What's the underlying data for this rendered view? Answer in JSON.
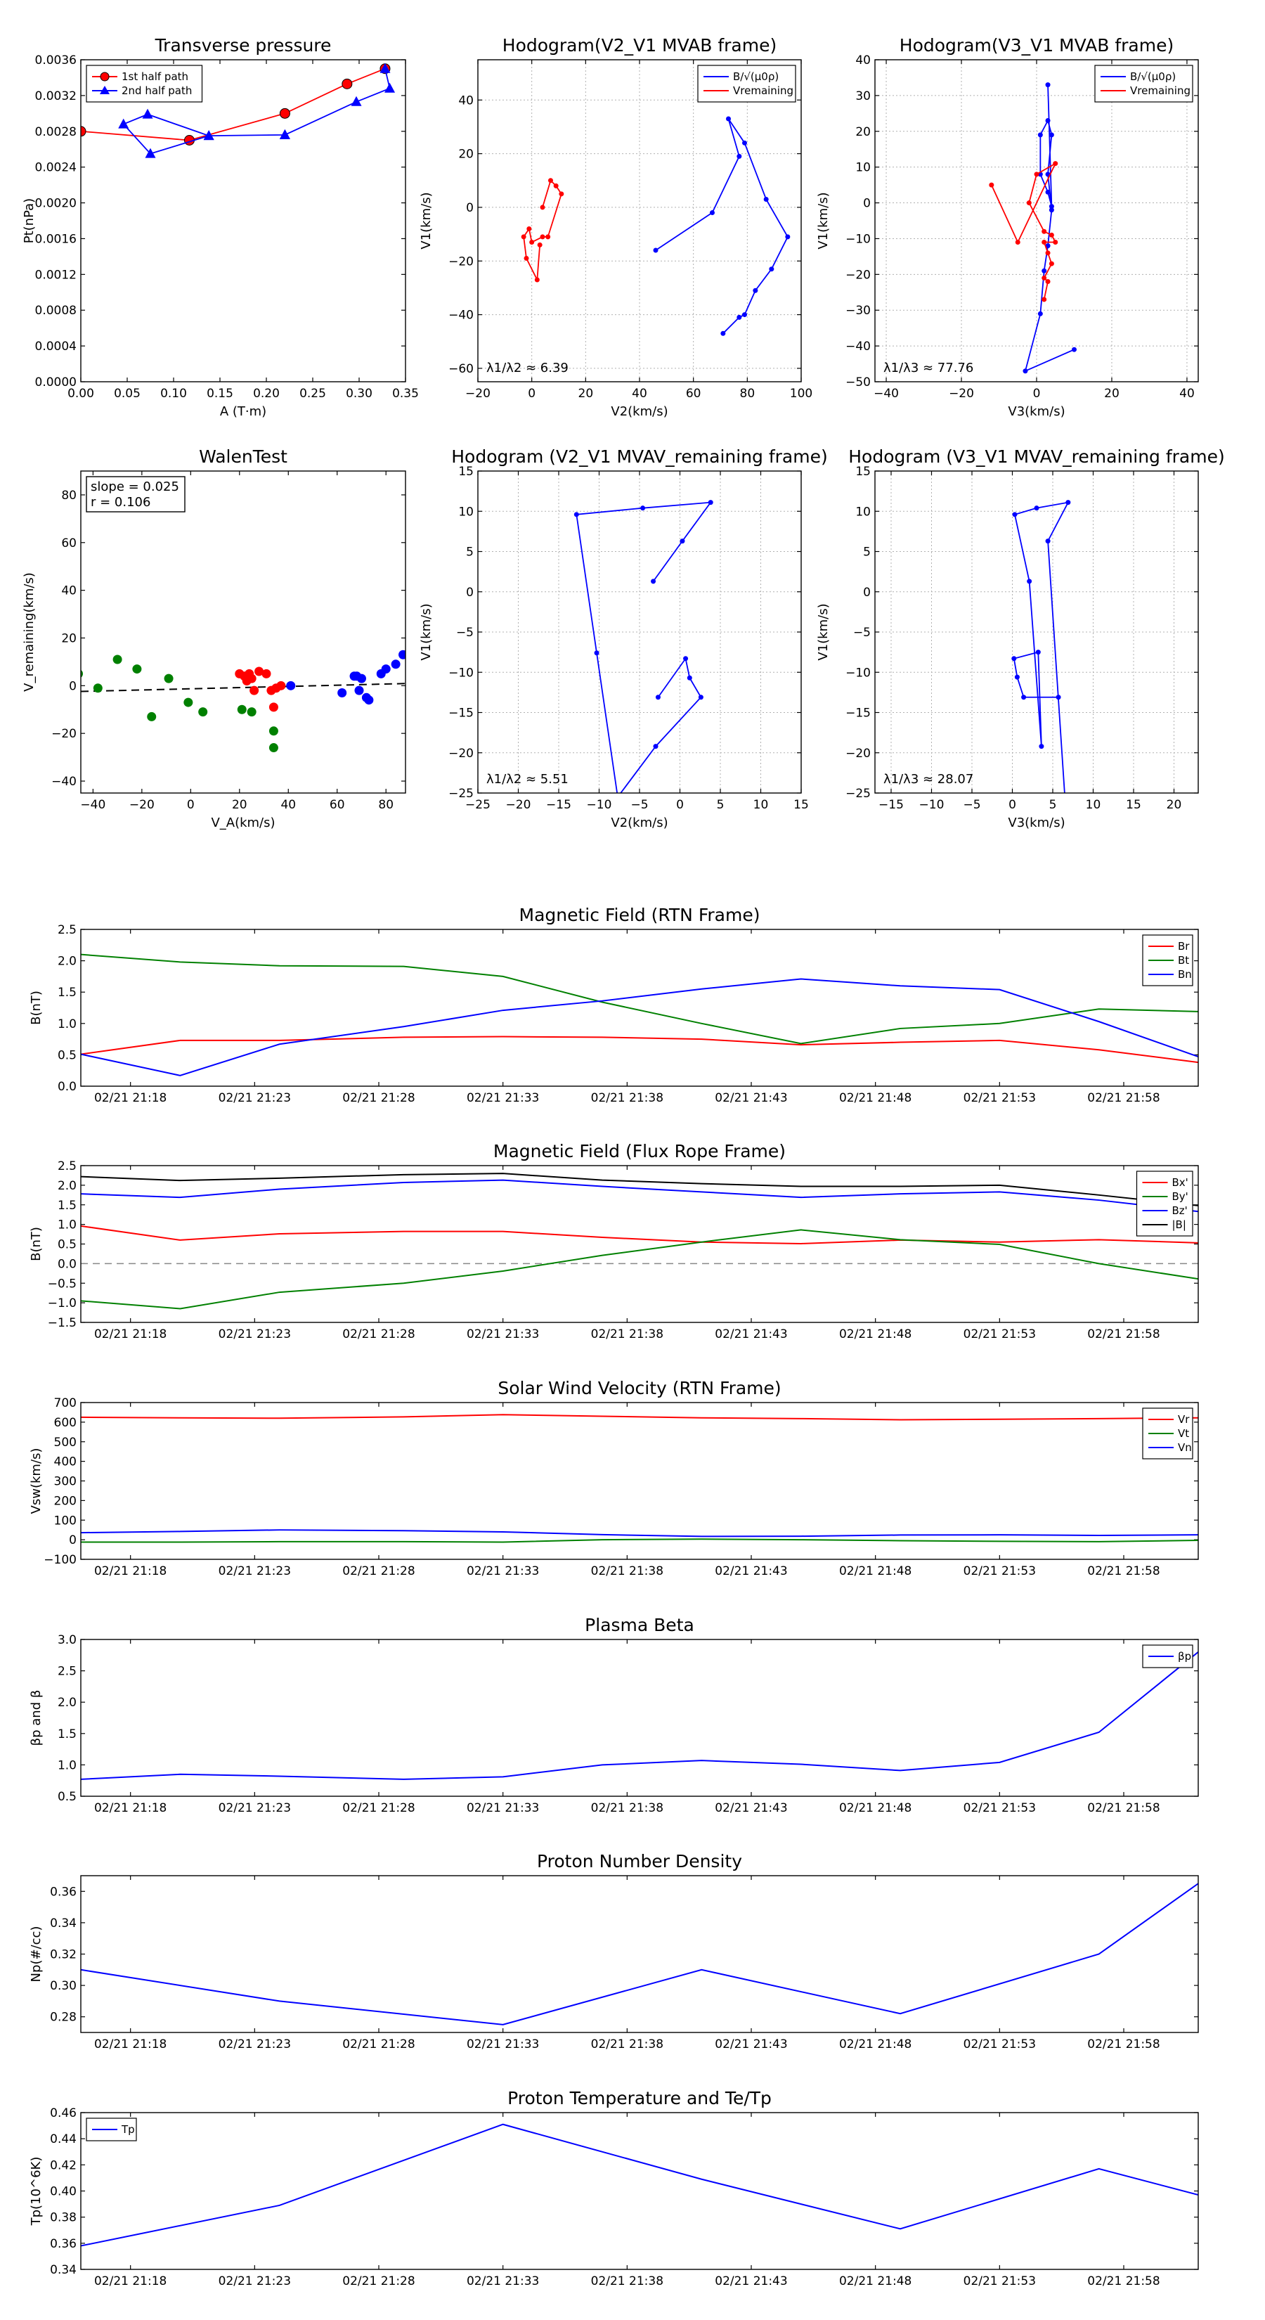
{
  "chart_data": [
    {
      "id": "transverse-pressure",
      "type": "line",
      "title": "Transverse pressure",
      "xlabel": "A (T·m)",
      "ylabel": "Pt(nPa)",
      "xlim": [
        0,
        0.35
      ],
      "ylim": [
        0,
        0.0036
      ],
      "xticks": [
        "0.00",
        "0.05",
        "0.10",
        "0.15",
        "0.20",
        "0.25",
        "0.30",
        "0.35"
      ],
      "yticks": [
        "0.0000",
        "0.0004",
        "0.0008",
        "0.0012",
        "0.0016",
        "0.0020",
        "0.0024",
        "0.0028",
        "0.0032",
        "0.0036"
      ],
      "grid": false,
      "legend": "top-left",
      "series": [
        {
          "name": "1st half path",
          "color": "#ff0000",
          "marker": "circle",
          "x": [
            0.0,
            0.117,
            0.22,
            0.287,
            0.328
          ],
          "y": [
            0.0028,
            0.0027,
            0.003,
            0.00333,
            0.0035
          ]
        },
        {
          "name": "2nd half path",
          "color": "#0000ff",
          "marker": "triangle",
          "x": [
            0.328,
            0.333,
            0.297,
            0.22,
            0.138,
            0.072,
            0.046,
            0.075,
            0.138,
            0.22
          ],
          "y": [
            0.0035,
            0.00328,
            0.00313,
            0.00276,
            0.00275,
            0.00299,
            0.00288,
            0.00255,
            0.00275,
            0.00276
          ]
        }
      ]
    },
    {
      "id": "hodogram-v2-v1-mvab",
      "type": "line",
      "title": "Hodogram(V2_V1 MVAB frame)",
      "xlabel": "V2(km/s)",
      "ylabel": "V1(km/s)",
      "xlim": [
        -20,
        100
      ],
      "ylim": [
        -65,
        55
      ],
      "xticks": [
        "−20",
        "0",
        "20",
        "40",
        "60",
        "80",
        "100"
      ],
      "yticks": [
        "−60",
        "−40",
        "−20",
        "0",
        "20",
        "40"
      ],
      "grid": true,
      "legend": "top-right",
      "annotation": "λ1/λ2 ≈ 6.39",
      "series": [
        {
          "name": "B/√(μ0ρ)",
          "color": "#0000ff",
          "x": [
            46,
            67,
            77,
            73,
            79,
            87,
            95,
            89,
            83,
            79,
            77,
            71
          ],
          "y": [
            -16,
            -2,
            19,
            33,
            24,
            3,
            -11,
            -23,
            -31,
            -40,
            -41,
            -47
          ]
        },
        {
          "name": "Vremaining",
          "color": "#ff0000",
          "x": [
            4,
            7,
            9,
            11,
            6,
            4,
            0,
            -1,
            -3,
            -2,
            2,
            3
          ],
          "y": [
            0,
            10,
            8,
            5,
            -11,
            -11,
            -13,
            -8,
            -11,
            -19,
            -27,
            -14
          ]
        }
      ]
    },
    {
      "id": "hodogram-v3-v1-mvab",
      "type": "line",
      "title": "Hodogram(V3_V1 MVAB frame)",
      "xlabel": "V3(km/s)",
      "ylabel": "V1(km/s)",
      "xlim": [
        -43,
        43
      ],
      "ylim": [
        -50,
        40
      ],
      "xticks": [
        "−40",
        "−20",
        "0",
        "20",
        "40"
      ],
      "yticks": [
        "−50",
        "−40",
        "−30",
        "−20",
        "−10",
        "0",
        "10",
        "20",
        "30",
        "40"
      ],
      "grid": true,
      "legend": "top-right",
      "annotation": "λ1/λ3 ≈ 77.76",
      "series": [
        {
          "name": "B/√(μ0ρ)",
          "color": "#0000ff",
          "x": [
            10,
            -3,
            1,
            2,
            3,
            4,
            3,
            4,
            3,
            1,
            1,
            3,
            4,
            3
          ],
          "y": [
            -41,
            -47,
            -31,
            -19,
            -12,
            -2,
            8,
            19,
            23,
            19,
            8,
            3,
            -1,
            33
          ]
        },
        {
          "name": "Vremaining",
          "color": "#ff0000",
          "x": [
            -12,
            -5,
            5,
            0,
            -2,
            2,
            4,
            5,
            2,
            3,
            4,
            2,
            3,
            2
          ],
          "y": [
            5,
            -11,
            11,
            8,
            0,
            -8,
            -9,
            -11,
            -11,
            -14,
            -17,
            -21,
            -22,
            -27
          ]
        }
      ]
    },
    {
      "id": "walen-test",
      "type": "scatter",
      "title": "WalenTest",
      "xlabel": "V_A(km/s)",
      "ylabel": "V_remaining(km/s)",
      "xlim": [
        -45,
        88
      ],
      "ylim": [
        -45,
        90
      ],
      "xticks": [
        "−40",
        "−20",
        "0",
        "20",
        "40",
        "60",
        "80"
      ],
      "yticks": [
        "−40",
        "−20",
        "0",
        "20",
        "40",
        "60",
        "80"
      ],
      "grid": false,
      "annotation_lines": [
        "slope = 0.025",
        "r = 0.106"
      ],
      "fit_line": {
        "slope": 0.025,
        "intercept": -1.3
      },
      "series": [
        {
          "name": "",
          "color": "#008000",
          "x": [
            -46,
            -38,
            -30,
            -22,
            -16,
            -9,
            -1,
            5,
            21,
            25,
            34,
            34
          ],
          "y": [
            5,
            -1,
            11,
            7,
            -13,
            3,
            -7,
            -11,
            -10,
            -11,
            -19,
            -26
          ]
        },
        {
          "name": "",
          "color": "#ff0000",
          "x": [
            20,
            22,
            24,
            25,
            23,
            26,
            28,
            31,
            33,
            34,
            35,
            37
          ],
          "y": [
            5,
            4,
            5,
            3,
            2,
            -2,
            6,
            5,
            -2,
            -9,
            -1,
            0
          ]
        },
        {
          "name": "",
          "color": "#0000ff",
          "x": [
            41,
            62,
            67,
            68,
            69,
            70,
            72,
            73,
            78,
            80,
            84,
            87
          ],
          "y": [
            0,
            -3,
            4,
            4,
            -2,
            3,
            -5,
            -6,
            5,
            7,
            9,
            13
          ]
        }
      ]
    },
    {
      "id": "hodogram-v2-v1-mvav",
      "type": "line",
      "title": "Hodogram (V2_V1 MVAV_remaining frame)",
      "xlabel": "V2(km/s)",
      "ylabel": "V1(km/s)",
      "xlim": [
        -25,
        15
      ],
      "ylim": [
        -25,
        15
      ],
      "xticks": [
        "−25",
        "−20",
        "−15",
        "−10",
        "−5",
        "0",
        "5",
        "10",
        "15"
      ],
      "yticks": [
        "−25",
        "−20",
        "−15",
        "−10",
        "−5",
        "0",
        "5",
        "10",
        "15"
      ],
      "grid": true,
      "annotation": "λ1/λ2 ≈ 5.51",
      "series": [
        {
          "name": "",
          "color": "#0000ff",
          "x": [
            -3.3,
            0.3,
            3.8,
            -4.6,
            -12.8,
            -10.3,
            -7.7,
            -3,
            2.6,
            1.2,
            0.7,
            -2.7
          ],
          "y": [
            1.3,
            6.3,
            11.1,
            10.4,
            9.6,
            -7.6,
            -25.5,
            -19.2,
            -13.1,
            -10.7,
            -8.3,
            -13.1
          ]
        }
      ]
    },
    {
      "id": "hodogram-v3-v1-mvav",
      "type": "line",
      "title": "Hodogram (V3_V1 MVAV_remaining frame)",
      "xlabel": "V3(km/s)",
      "ylabel": "V1(km/s)",
      "xlim": [
        -17,
        23
      ],
      "ylim": [
        -25,
        15
      ],
      "xticks": [
        "−15",
        "−10",
        "−5",
        "0",
        "5",
        "10",
        "15",
        "20"
      ],
      "yticks": [
        "−25",
        "−20",
        "−15",
        "−10",
        "−5",
        "0",
        "5",
        "10",
        "15"
      ],
      "grid": true,
      "annotation": "λ1/λ3 ≈ 28.07",
      "series": [
        {
          "name": "",
          "color": "#0000ff",
          "x": [
            5.7,
            1.4,
            0.6,
            0.2,
            3.2,
            3.6,
            2.1,
            0.3,
            3.0,
            6.9,
            4.4,
            6.5
          ],
          "y": [
            -13.1,
            -13.1,
            -10.6,
            -8.3,
            -7.5,
            -19.2,
            1.3,
            9.6,
            10.4,
            11.1,
            6.3,
            -25.5
          ]
        }
      ]
    },
    {
      "id": "magnetic-field-rtn",
      "type": "line",
      "title": "Magnetic Field (RTN Frame)",
      "ylabel": "B(nT)",
      "x": [
        "21:16",
        "21:20",
        "21:24",
        "21:29",
        "21:33",
        "21:37",
        "21:41",
        "21:45",
        "21:49",
        "21:53",
        "21:57",
        "22:01"
      ],
      "xticks": [
        "02/21 21:18",
        "02/21 21:23",
        "02/21 21:28",
        "02/21 21:33",
        "02/21 21:38",
        "02/21 21:43",
        "02/21 21:48",
        "02/21 21:53",
        "02/21 21:58"
      ],
      "ylim": [
        0,
        2.5
      ],
      "yticks": [
        "0.0",
        "0.5",
        "1.0",
        "1.5",
        "2.0",
        "2.5"
      ],
      "grid": false,
      "legend": "top-right",
      "series": [
        {
          "name": "Br",
          "color": "#ff0000",
          "values": [
            0.51,
            0.73,
            0.73,
            0.78,
            0.79,
            0.78,
            0.75,
            0.66,
            0.7,
            0.73,
            0.58,
            0.38
          ]
        },
        {
          "name": "Bt",
          "color": "#008000",
          "values": [
            2.1,
            1.98,
            1.92,
            1.91,
            1.75,
            1.34,
            1.0,
            0.68,
            0.92,
            1.0,
            1.23,
            1.19
          ]
        },
        {
          "name": "Bn",
          "color": "#0000ff",
          "values": [
            0.51,
            0.17,
            0.67,
            0.95,
            1.21,
            1.36,
            1.55,
            1.71,
            1.6,
            1.54,
            1.03,
            0.47
          ]
        }
      ]
    },
    {
      "id": "magnetic-field-flux-rope",
      "type": "line",
      "title": "Magnetic Field (Flux Rope Frame)",
      "ylabel": "B(nT)",
      "x": [
        "21:16",
        "21:20",
        "21:24",
        "21:29",
        "21:33",
        "21:37",
        "21:41",
        "21:45",
        "21:49",
        "21:53",
        "21:57",
        "22:01"
      ],
      "xticks": [
        "02/21 21:18",
        "02/21 21:23",
        "02/21 21:28",
        "02/21 21:33",
        "02/21 21:38",
        "02/21 21:43",
        "02/21 21:48",
        "02/21 21:53",
        "02/21 21:58"
      ],
      "ylim": [
        -1.5,
        2.5
      ],
      "yticks": [
        "−1.5",
        "−1.0",
        "−0.5",
        "0.0",
        "0.5",
        "1.0",
        "1.5",
        "2.0",
        "2.5"
      ],
      "grid": false,
      "legend": "top-right",
      "zero_line": true,
      "series": [
        {
          "name": "Bx'",
          "color": "#ff0000",
          "values": [
            0.96,
            0.6,
            0.76,
            0.82,
            0.82,
            0.67,
            0.55,
            0.51,
            0.6,
            0.55,
            0.61,
            0.53
          ]
        },
        {
          "name": "By'",
          "color": "#008000",
          "values": [
            -0.95,
            -1.15,
            -0.73,
            -0.5,
            -0.19,
            0.21,
            0.55,
            0.86,
            0.61,
            0.49,
            0.0,
            -0.39
          ]
        },
        {
          "name": "Bz'",
          "color": "#0000ff",
          "values": [
            1.78,
            1.69,
            1.9,
            2.07,
            2.13,
            1.97,
            1.83,
            1.69,
            1.78,
            1.83,
            1.62,
            1.33
          ]
        },
        {
          "name": "|B|",
          "color": "#000000",
          "values": [
            2.22,
            2.12,
            2.18,
            2.27,
            2.3,
            2.13,
            2.04,
            1.97,
            1.97,
            2.0,
            1.75,
            1.48
          ]
        }
      ]
    },
    {
      "id": "solar-wind-velocity",
      "type": "line",
      "title": "Solar Wind Velocity (RTN Frame)",
      "ylabel": "Vsw(km/s)",
      "x": [
        "21:16",
        "21:20",
        "21:24",
        "21:29",
        "21:33",
        "21:37",
        "21:41",
        "21:45",
        "21:49",
        "21:53",
        "21:57",
        "22:01"
      ],
      "xticks": [
        "02/21 21:18",
        "02/21 21:23",
        "02/21 21:28",
        "02/21 21:33",
        "02/21 21:38",
        "02/21 21:43",
        "02/21 21:48",
        "02/21 21:53",
        "02/21 21:58"
      ],
      "ylim": [
        -100,
        700
      ],
      "yticks": [
        "−100",
        "0",
        "100",
        "200",
        "300",
        "400",
        "500",
        "600",
        "700"
      ],
      "grid": false,
      "legend": "top-right",
      "series": [
        {
          "name": "Vr",
          "color": "#ff0000",
          "values": [
            625,
            622,
            620,
            627,
            638,
            630,
            622,
            618,
            612,
            615,
            618,
            622
          ]
        },
        {
          "name": "Vt",
          "color": "#008000",
          "values": [
            -12,
            -12,
            -10,
            -10,
            -12,
            0,
            3,
            0,
            -5,
            -8,
            -10,
            -3
          ]
        },
        {
          "name": "Vn",
          "color": "#0000ff",
          "values": [
            36,
            42,
            50,
            46,
            40,
            26,
            17,
            18,
            24,
            25,
            22,
            25
          ]
        }
      ]
    },
    {
      "id": "plasma-beta",
      "type": "line",
      "title": "Plasma Beta",
      "ylabel": "βp and β",
      "x": [
        "21:16",
        "21:20",
        "21:24",
        "21:29",
        "21:33",
        "21:37",
        "21:41",
        "21:45",
        "21:49",
        "21:53",
        "21:57",
        "22:01"
      ],
      "xticks": [
        "02/21 21:18",
        "02/21 21:23",
        "02/21 21:28",
        "02/21 21:33",
        "02/21 21:38",
        "02/21 21:43",
        "02/21 21:48",
        "02/21 21:53",
        "02/21 21:58"
      ],
      "ylim": [
        0.5,
        3.0
      ],
      "yticks": [
        "0.5",
        "1.0",
        "1.5",
        "2.0",
        "2.5",
        "3.0"
      ],
      "grid": false,
      "legend": "top-right",
      "series": [
        {
          "name": "βp",
          "color": "#0000ff",
          "values": [
            0.77,
            0.85,
            0.82,
            0.77,
            0.81,
            1.0,
            1.07,
            1.01,
            0.91,
            1.04,
            1.52,
            2.8
          ]
        }
      ]
    },
    {
      "id": "proton-number-density",
      "type": "line",
      "title": "Proton Number Density",
      "ylabel": "Np(#/cc)",
      "x": [
        "21:16",
        "21:24",
        "21:33",
        "21:41",
        "21:49",
        "21:57",
        "22:01"
      ],
      "xticks": [
        "02/21 21:18",
        "02/21 21:23",
        "02/21 21:28",
        "02/21 21:33",
        "02/21 21:38",
        "02/21 21:43",
        "02/21 21:48",
        "02/21 21:53",
        "02/21 21:58"
      ],
      "ylim": [
        0.27,
        0.37
      ],
      "yticks": [
        "0.28",
        "0.30",
        "0.32",
        "0.34",
        "0.36"
      ],
      "grid": false,
      "series": [
        {
          "name": "",
          "color": "#0000ff",
          "values": [
            0.31,
            0.29,
            0.275,
            0.31,
            0.282,
            0.32,
            0.365
          ]
        }
      ]
    },
    {
      "id": "proton-temperature",
      "type": "line",
      "title": "Proton Temperature and Te/Tp",
      "ylabel": "Tp(10^6K)",
      "x": [
        "21:16",
        "21:24",
        "21:33",
        "21:41",
        "21:49",
        "21:57",
        "22:01"
      ],
      "xticks": [
        "02/21 21:18",
        "02/21 21:23",
        "02/21 21:28",
        "02/21 21:33",
        "02/21 21:38",
        "02/21 21:43",
        "02/21 21:48",
        "02/21 21:53",
        "02/21 21:58"
      ],
      "ylim": [
        0.34,
        0.46
      ],
      "yticks": [
        "0.34",
        "0.36",
        "0.38",
        "0.40",
        "0.42",
        "0.44",
        "0.46"
      ],
      "grid": false,
      "legend": "top-left",
      "series": [
        {
          "name": "Tp",
          "color": "#0000ff",
          "values": [
            0.358,
            0.389,
            0.451,
            0.409,
            0.371,
            0.417,
            0.397
          ]
        }
      ]
    }
  ]
}
